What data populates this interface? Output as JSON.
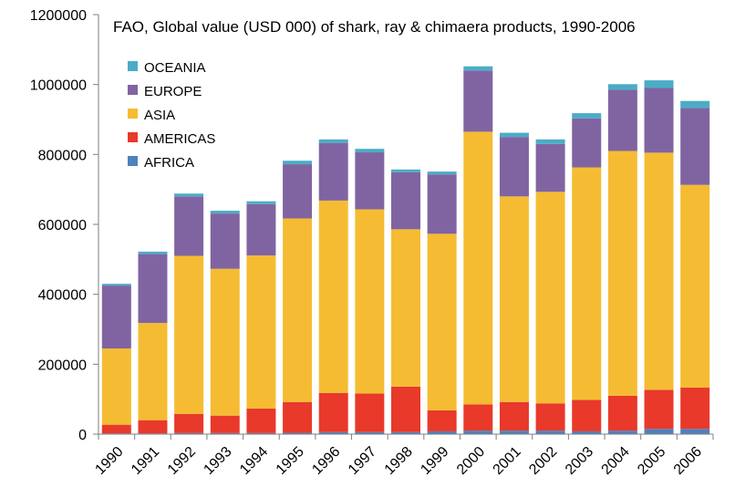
{
  "chart_data": {
    "type": "bar",
    "stacked": true,
    "title": "FAO, Global value (USD 000) of shark, ray & chimaera products, 1990-2006",
    "xlabel": "",
    "ylabel": "",
    "ylim": [
      0,
      1200000
    ],
    "yticks": [
      "0",
      "200000",
      "400000",
      "600000",
      "800000",
      "1000000",
      "1200000"
    ],
    "grid": false,
    "legend_position": "top-left",
    "categories": [
      "1990",
      "1991",
      "1992",
      "1993",
      "1994",
      "1995",
      "1996",
      "1997",
      "1998",
      "1999",
      "2000",
      "2001",
      "2002",
      "2003",
      "2004",
      "2005",
      "2006"
    ],
    "series": [
      {
        "name": "AFRICA",
        "color": "#4f81bd",
        "values": [
          2000,
          2000,
          3000,
          3000,
          3000,
          4000,
          6000,
          6000,
          6000,
          8000,
          10000,
          10000,
          10000,
          8000,
          10000,
          15000,
          15000
        ]
      },
      {
        "name": "AMERICAS",
        "color": "#e8392b",
        "values": [
          25000,
          38000,
          55000,
          50000,
          70000,
          88000,
          112000,
          110000,
          130000,
          60000,
          75000,
          82000,
          78000,
          90000,
          100000,
          112000,
          118000
        ]
      },
      {
        "name": "ASIA",
        "color": "#f5bc33",
        "values": [
          218000,
          278000,
          452000,
          420000,
          438000,
          525000,
          550000,
          527000,
          450000,
          505000,
          780000,
          588000,
          605000,
          665000,
          700000,
          678000,
          580000
        ]
      },
      {
        "name": "EUROPE",
        "color": "#8064a2",
        "values": [
          180000,
          197000,
          170000,
          158000,
          147000,
          155000,
          165000,
          163000,
          163000,
          170000,
          175000,
          170000,
          137000,
          140000,
          175000,
          185000,
          220000
        ]
      },
      {
        "name": "OCEANIA",
        "color": "#4bacc6",
        "values": [
          5000,
          7000,
          8000,
          8000,
          8000,
          10000,
          10000,
          10000,
          8000,
          8000,
          12000,
          12000,
          13000,
          15000,
          16000,
          22000,
          20000
        ]
      }
    ]
  }
}
